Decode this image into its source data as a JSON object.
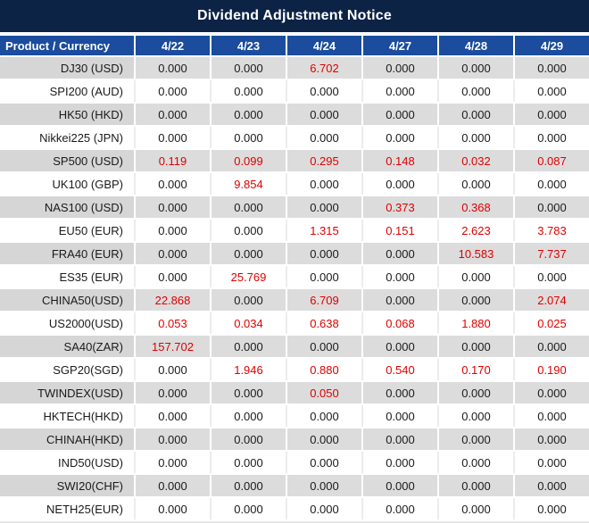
{
  "title": "Dividend Adjustment Notice",
  "chart_data": {
    "type": "table",
    "title": "Dividend Adjustment Notice",
    "columns": [
      "Product / Currency",
      "4/22",
      "4/23",
      "4/24",
      "4/27",
      "4/28",
      "4/29"
    ],
    "rows": [
      {
        "product": "DJ30 (USD)",
        "values": [
          "0.000",
          "0.000",
          "6.702",
          "0.000",
          "0.000",
          "0.000"
        ]
      },
      {
        "product": "SPI200 (AUD)",
        "values": [
          "0.000",
          "0.000",
          "0.000",
          "0.000",
          "0.000",
          "0.000"
        ]
      },
      {
        "product": "HK50 (HKD)",
        "values": [
          "0.000",
          "0.000",
          "0.000",
          "0.000",
          "0.000",
          "0.000"
        ]
      },
      {
        "product": "Nikkei225 (JPN)",
        "values": [
          "0.000",
          "0.000",
          "0.000",
          "0.000",
          "0.000",
          "0.000"
        ]
      },
      {
        "product": "SP500 (USD)",
        "values": [
          "0.119",
          "0.099",
          "0.295",
          "0.148",
          "0.032",
          "0.087"
        ]
      },
      {
        "product": "UK100 (GBP)",
        "values": [
          "0.000",
          "9.854",
          "0.000",
          "0.000",
          "0.000",
          "0.000"
        ]
      },
      {
        "product": "NAS100 (USD)",
        "values": [
          "0.000",
          "0.000",
          "0.000",
          "0.373",
          "0.368",
          "0.000"
        ]
      },
      {
        "product": "EU50 (EUR)",
        "values": [
          "0.000",
          "0.000",
          "1.315",
          "0.151",
          "2.623",
          "3.783"
        ]
      },
      {
        "product": "FRA40 (EUR)",
        "values": [
          "0.000",
          "0.000",
          "0.000",
          "0.000",
          "10.583",
          "7.737"
        ]
      },
      {
        "product": "ES35 (EUR)",
        "values": [
          "0.000",
          "25.769",
          "0.000",
          "0.000",
          "0.000",
          "0.000"
        ]
      },
      {
        "product": "CHINA50(USD)",
        "values": [
          "22.868",
          "0.000",
          "6.709",
          "0.000",
          "0.000",
          "2.074"
        ]
      },
      {
        "product": "US2000(USD)",
        "values": [
          "0.053",
          "0.034",
          "0.638",
          "0.068",
          "1.880",
          "0.025"
        ]
      },
      {
        "product": "SA40(ZAR)",
        "values": [
          "157.702",
          "0.000",
          "0.000",
          "0.000",
          "0.000",
          "0.000"
        ]
      },
      {
        "product": "SGP20(SGD)",
        "values": [
          "0.000",
          "1.946",
          "0.880",
          "0.540",
          "0.170",
          "0.190"
        ]
      },
      {
        "product": "TWINDEX(USD)",
        "values": [
          "0.000",
          "0.000",
          "0.050",
          "0.000",
          "0.000",
          "0.000"
        ]
      },
      {
        "product": "HKTECH(HKD)",
        "values": [
          "0.000",
          "0.000",
          "0.000",
          "0.000",
          "0.000",
          "0.000"
        ]
      },
      {
        "product": "CHINAH(HKD)",
        "values": [
          "0.000",
          "0.000",
          "0.000",
          "0.000",
          "0.000",
          "0.000"
        ]
      },
      {
        "product": "IND50(USD)",
        "values": [
          "0.000",
          "0.000",
          "0.000",
          "0.000",
          "0.000",
          "0.000"
        ]
      },
      {
        "product": "SWI20(CHF)",
        "values": [
          "0.000",
          "0.000",
          "0.000",
          "0.000",
          "0.000",
          "0.000"
        ]
      },
      {
        "product": "NETH25(EUR)",
        "values": [
          "0.000",
          "0.000",
          "0.000",
          "0.000",
          "0.000",
          "0.000"
        ]
      }
    ],
    "style_rule": "non-zero values rendered in red; zero values in black; odd rows (1st, 3rd, ...) gray striped"
  },
  "colors": {
    "title_bg": "#0D2346",
    "header_bg": "#1B4C9E",
    "header_text": "#FFFFFF",
    "stripe_label": "#D6D6D6",
    "stripe_cell": "#DCDCDC",
    "value_text": "#1A1A1A",
    "value_red": "#E00000"
  }
}
